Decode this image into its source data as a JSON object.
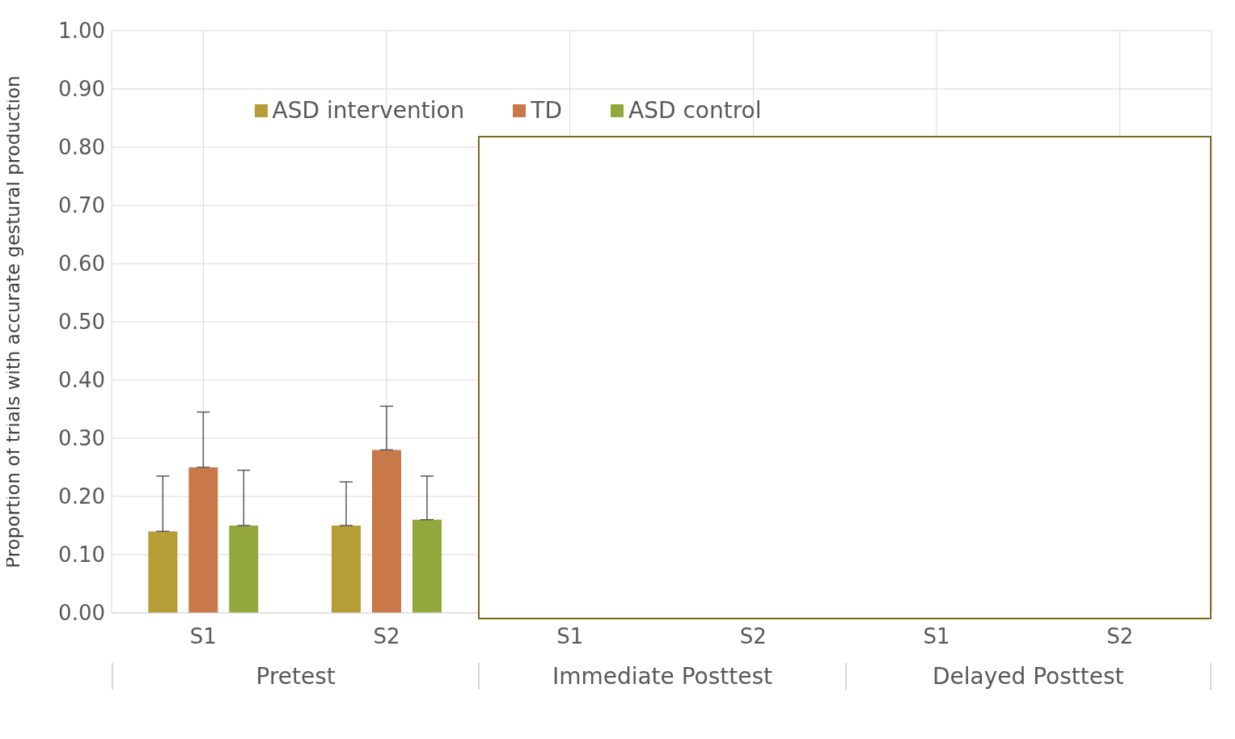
{
  "chart_data": {
    "type": "bar",
    "ylabel": "Proportion of trials with accurate gestural production",
    "categories": [
      "S1",
      "S2",
      "S1",
      "S2",
      "S1",
      "S2"
    ],
    "annotations": [
      "Pretest",
      "Immediate Posttest",
      "Delayed Posttest"
    ],
    "series": [
      {
        "name": "ASD intervention",
        "color": "#b79d35",
        "values": [
          0.14,
          0.15,
          null,
          null,
          null,
          null
        ],
        "errors": [
          [
            0.14,
            0.235
          ],
          [
            0.15,
            0.225
          ],
          null,
          null,
          null,
          null
        ]
      },
      {
        "name": "TD",
        "color": "#c9784a",
        "values": [
          0.25,
          0.28,
          null,
          null,
          null,
          null
        ],
        "errors": [
          [
            0.25,
            0.345
          ],
          [
            0.28,
            0.355
          ],
          null,
          null,
          null,
          null
        ]
      },
      {
        "name": "ASD control",
        "color": "#93a83c",
        "values": [
          0.15,
          0.16,
          null,
          null,
          null,
          null
        ],
        "errors": [
          [
            0.15,
            0.245
          ],
          [
            0.16,
            0.235
          ],
          null,
          null,
          null,
          null
        ]
      }
    ],
    "ylim": [
      0,
      1
    ],
    "yticks": [
      {
        "value": 0,
        "label": "0.00"
      },
      {
        "value": 0.1,
        "label": "0.10"
      },
      {
        "value": 0.2,
        "label": "0.20"
      },
      {
        "value": 0.3,
        "label": "0.30"
      },
      {
        "value": 0.4,
        "label": "0.40"
      },
      {
        "value": 0.5,
        "label": "0.50"
      },
      {
        "value": 0.6,
        "label": "0.60"
      },
      {
        "value": 0.7,
        "label": "0.70"
      },
      {
        "value": 0.8,
        "label": "0.80"
      },
      {
        "value": 0.9,
        "label": "0.90"
      },
      {
        "value": 1,
        "label": "1.00"
      }
    ],
    "grid": true,
    "legend": "top"
  }
}
